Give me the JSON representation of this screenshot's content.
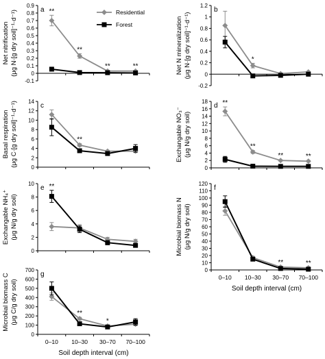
{
  "chart_data": [
    {
      "panel": "a",
      "type": "line",
      "ylabel_lines": [
        "Net nitrification",
        "(μg N·[g dry soil]⁻¹·d⁻¹)"
      ],
      "ylim": [
        -0.1,
        0.9
      ],
      "yticks": [
        -0.1,
        0,
        0.1,
        0.2,
        0.3,
        0.4,
        0.5,
        0.6,
        0.7,
        0.8,
        0.9
      ],
      "categories": [
        "0–10",
        "10–30",
        "30–70",
        "70–100"
      ],
      "series": [
        {
          "name": "Residential",
          "values": [
            0.7,
            0.23,
            0.03,
            0.03
          ],
          "errors": [
            0.07,
            0.03,
            0.01,
            0.01
          ]
        },
        {
          "name": "Forest",
          "values": [
            0.055,
            0.01,
            0.008,
            0.005
          ],
          "errors": [
            0.015,
            0.005,
            0.003,
            0.003
          ]
        }
      ],
      "significance": [
        "**",
        "**",
        "**",
        "**"
      ],
      "legend": {
        "entries": [
          "Residential",
          "Forest"
        ],
        "placement": "top-right"
      }
    },
    {
      "panel": "b",
      "type": "line",
      "ylabel_lines": [
        "Net N mineralization",
        "(μg N·[g dry soil]⁻¹·d⁻¹)"
      ],
      "ylim": [
        -0.2,
        1.2
      ],
      "yticks": [
        -0.2,
        0,
        0.2,
        0.4,
        0.6,
        0.8,
        1,
        1.2
      ],
      "categories": [
        "0–10",
        "10–30",
        "30–70",
        "70–100"
      ],
      "series": [
        {
          "name": "Residential",
          "values": [
            0.85,
            0.15,
            0.01,
            0.04
          ],
          "errors": [
            0.25,
            0.04,
            0.01,
            0.01
          ]
        },
        {
          "name": "Forest",
          "values": [
            0.56,
            -0.03,
            -0.02,
            0.0
          ],
          "errors": [
            0.1,
            0.01,
            0.01,
            0.01
          ]
        }
      ],
      "significance": [
        "",
        "*",
        "",
        ""
      ]
    },
    {
      "panel": "c",
      "type": "line",
      "ylabel_lines": [
        "Basal respiration",
        "(μg C·[g dry soil]⁻¹·d⁻¹)"
      ],
      "ylim": [
        0,
        14
      ],
      "yticks": [
        0,
        2,
        4,
        6,
        8,
        10,
        12,
        14
      ],
      "categories": [
        "0–10",
        "10–30",
        "30–70",
        "70–100"
      ],
      "series": [
        {
          "name": "Residential",
          "values": [
            11.2,
            4.7,
            3.4,
            3.4
          ],
          "errors": [
            1.0,
            0.3,
            0.2,
            0.3
          ]
        },
        {
          "name": "Forest",
          "values": [
            8.5,
            3.5,
            2.9,
            4.0
          ],
          "errors": [
            1.8,
            0.3,
            0.3,
            0.8
          ]
        }
      ],
      "significance": [
        "",
        "**",
        "",
        ""
      ]
    },
    {
      "panel": "d",
      "type": "line",
      "ylabel_lines": [
        "Exchangable NO₃⁻",
        "(μg N/g dry soil)"
      ],
      "ylim": [
        0,
        18
      ],
      "yticks": [
        0,
        2,
        4,
        6,
        8,
        10,
        12,
        14,
        16,
        18
      ],
      "categories": [
        "0–10",
        "10–30",
        "30–70",
        "70–100"
      ],
      "series": [
        {
          "name": "Residential",
          "values": [
            15.3,
            4.3,
            2.0,
            1.8
          ],
          "errors": [
            1.2,
            0.4,
            0.2,
            0.2
          ]
        },
        {
          "name": "Forest",
          "values": [
            2.3,
            0.45,
            0.4,
            0.4
          ],
          "errors": [
            0.8,
            0.1,
            0.1,
            0.1
          ]
        }
      ],
      "significance": [
        "**",
        "**",
        "**",
        "**"
      ]
    },
    {
      "panel": "e",
      "type": "line",
      "ylabel_lines": [
        "Exchangable NH₄⁺",
        "(μg N/g dry soil)"
      ],
      "ylim": [
        0,
        10
      ],
      "yticks": [
        0,
        2,
        4,
        6,
        8,
        10
      ],
      "categories": [
        "0–10",
        "10–30",
        "30–70",
        "70–100"
      ],
      "series": [
        {
          "name": "Residential",
          "values": [
            3.6,
            3.4,
            1.7,
            1.4
          ],
          "errors": [
            0.6,
            0.5,
            0.3,
            0.3
          ]
        },
        {
          "name": "Forest",
          "values": [
            8.1,
            3.2,
            1.2,
            0.8
          ],
          "errors": [
            0.9,
            0.5,
            0.3,
            0.2
          ]
        }
      ],
      "significance": [
        "**",
        "",
        "",
        ""
      ]
    },
    {
      "panel": "f",
      "type": "line",
      "ylabel_lines": [
        "Microbial biomass N",
        "(μg N/g dry soil)"
      ],
      "ylim": [
        0,
        120
      ],
      "yticks": [
        0,
        10,
        20,
        30,
        40,
        50,
        60,
        70,
        80,
        90,
        100,
        110,
        120
      ],
      "xlabel": "Soil depth interval (cm)",
      "categories": [
        "0–10",
        "10–30",
        "30–70",
        "70–100"
      ],
      "series": [
        {
          "name": "Residential",
          "values": [
            82,
            17,
            4,
            3
          ],
          "errors": [
            6,
            2,
            1,
            1
          ]
        },
        {
          "name": "Forest",
          "values": [
            95,
            15,
            2,
            1
          ],
          "errors": [
            8,
            2,
            1,
            1
          ]
        }
      ],
      "significance": [
        "",
        "",
        "**",
        "**"
      ]
    },
    {
      "panel": "g",
      "type": "line",
      "ylabel_lines": [
        "Microbial biomass C",
        "(μg C/g dry soil)"
      ],
      "ylim": [
        0,
        700
      ],
      "yticks": [
        0,
        100,
        200,
        300,
        400,
        500,
        600,
        700
      ],
      "xlabel": "Soil depth interval (cm)",
      "categories": [
        "0–10",
        "10–30",
        "30–70",
        "70–100"
      ],
      "series": [
        {
          "name": "Residential",
          "values": [
            410,
            170,
            90,
            110
          ],
          "errors": [
            40,
            15,
            10,
            15
          ]
        },
        {
          "name": "Forest",
          "values": [
            500,
            115,
            80,
            135
          ],
          "errors": [
            70,
            15,
            10,
            35
          ]
        }
      ],
      "significance": [
        "",
        "**",
        "*",
        ""
      ]
    }
  ],
  "colors": {
    "residential": "#8c8c8c",
    "forest": "#000000",
    "axis": "#000000"
  }
}
